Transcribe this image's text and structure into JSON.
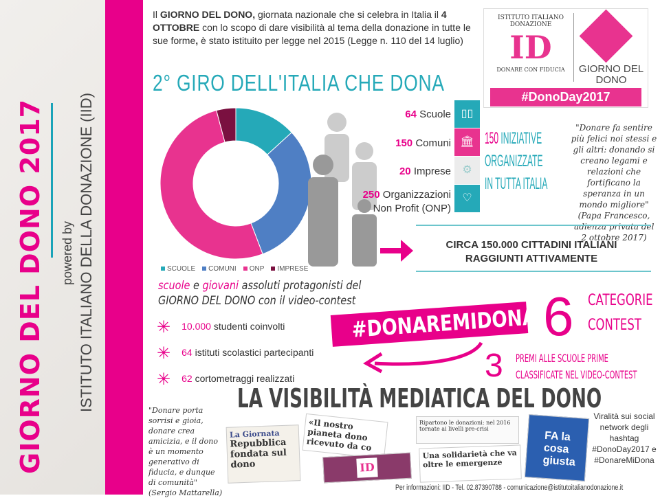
{
  "sidebar": {
    "title": "GIORNO DEL DONO 2017",
    "powered_by": "powered by",
    "organization": "ISTITUTO ITALIANO DELLA DONAZIONE (IID)"
  },
  "intro": {
    "p1": "Il ",
    "b1": "GIORNO DEL DONO,",
    "p2": " giornata nazionale che si celebra in Italia il ",
    "b2": "4 OTTOBRE",
    "p3": " con lo scopo di dare visibilità al tema della donazione in tutte le sue forme",
    "b3": ",",
    "p4": " è stato istituito per legge nel 2015 (Legge n. 110 del 14 luglio)"
  },
  "title": "2° GIRO DELL'ITALIA CHE DONA",
  "logo": {
    "iid_text": "ISTITUTO ITALIANO DONAZIONE",
    "iid_tagline": "DONARE CON FIDUCIA",
    "gdd_text": "GIORNO DEL DONO",
    "hashtag": "#DonoDay2017"
  },
  "chart_data": {
    "type": "pie",
    "donut": true,
    "categories": [
      "SCUOLE",
      "COMUNI",
      "ONP",
      "IMPRESE"
    ],
    "values": [
      64,
      150,
      250,
      20
    ],
    "colors": [
      "#25a9b8",
      "#4f7fc4",
      "#e8338f",
      "#7a1040"
    ]
  },
  "stats": [
    {
      "num": "64",
      "label": "Scuole",
      "icon": "book-icon",
      "color": "#25a9b8"
    },
    {
      "num": "150",
      "label": "Comuni",
      "icon": "building-icon",
      "color": "#e8338f"
    },
    {
      "num": "20",
      "label": "Imprese",
      "icon": "gears-icon",
      "color": "#ececec"
    },
    {
      "num": "250",
      "label": "Organizzazioni Non Profit (ONP)",
      "icon": "heart-icon",
      "color": "#25a9b8"
    }
  ],
  "iniziative": {
    "num": "150",
    "l1": "INIZIATIVE",
    "l2": "ORGANIZZATE",
    "l3": "IN TUTTA ITALIA"
  },
  "quote_papa": {
    "text": "\"Donare fa sentire più felici noi stessi e gli altri: donando si creano legami e relazioni che fortificano la speranza in un mondo migliore\"",
    "author": "(Papa Francesco, udienza privata del 2 ottobre 2017)"
  },
  "circa": {
    "l1": "CIRCA 150.000 CITTADINI ITALIANI",
    "l2": "RAGGIUNTI ATTIVAMENTE"
  },
  "contest": {
    "w1": "scuole",
    "w2": " e ",
    "w3": "giovani",
    "w4": " assoluti protagonisti del",
    "l2": "GIORNO DEL DONO con il video-contest"
  },
  "bullets": [
    {
      "num": "10.000",
      "text": "studenti coinvolti"
    },
    {
      "num": "64",
      "text": "istituti scolastici partecipanti"
    },
    {
      "num": "62",
      "text": "cortometraggi realizzati"
    }
  ],
  "hashtag_contest": "#DONAREMIDONA",
  "categorie": {
    "num": "6",
    "l1": "CATEGORIE",
    "l2": "CONTEST"
  },
  "premi": {
    "num": "3",
    "l1": "PREMI ALLE SCUOLE PRIME",
    "l2": "CLASSIFICATE NEL VIDEO-CONTEST"
  },
  "media_title": "LA VISIBILITÀ MEDIATICA DEL DONO",
  "quote_mattarella": {
    "text": "\"Donare porta sorrisi e gioia, donare crea amicizia, e il dono è un momento generativo di fiducia, e dunque di comunità\"",
    "author": "(Sergio Mattarella)"
  },
  "clips": {
    "c1": "La Giornata",
    "c1b": "Repubblica fondata sul dono",
    "c2": "«Il nostro pianeta dono ricevuto da co",
    "c3": "Ripartono le donazioni: nel 2016 tornate ai livelli pre-crisi",
    "c4": "Una solidarietà che va oltre le emergenze",
    "c5": "FA la cosa giusta"
  },
  "viral": "Viralità sui social network degli hashtag #DonoDay2017 e #DonareMiDona",
  "footer": "Per informazioni: IID - Tel. 02.87390788 - comunicazione@istitutoitalianodonazione.it"
}
